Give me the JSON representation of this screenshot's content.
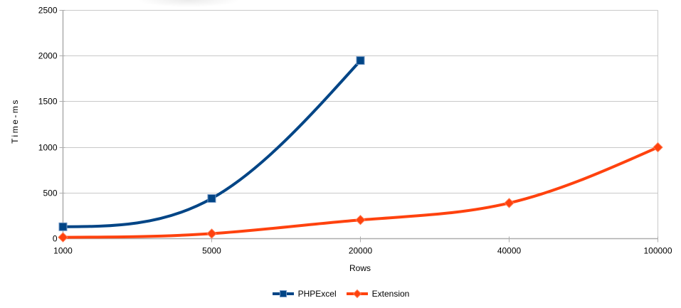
{
  "chart_data": {
    "type": "line",
    "title": "",
    "xlabel": "Rows",
    "ylabel": "Time-ms",
    "categories": [
      "1000",
      "5000",
      "20000",
      "40000",
      "100000"
    ],
    "series": [
      {
        "name": "PHPExcel",
        "color": "#004586",
        "marker": "square",
        "values": [
          130,
          440,
          1950,
          null,
          null
        ]
      },
      {
        "name": "Extension",
        "color": "#FF420E",
        "marker": "diamond",
        "values": [
          15,
          55,
          205,
          390,
          1000
        ]
      }
    ],
    "ylim": [
      0,
      2500
    ],
    "yticks": [
      0,
      500,
      1000,
      1500,
      2000,
      2500
    ],
    "grid": "horizontal-only",
    "line_style": "smooth",
    "legend_position": "bottom"
  },
  "colors": {
    "background": "#FFFFFF",
    "grid": "#C9C9C9",
    "axis": "#ADADAD",
    "text": "#000000",
    "marker_edges": [
      "#7296C4",
      "#FF7B52"
    ]
  }
}
